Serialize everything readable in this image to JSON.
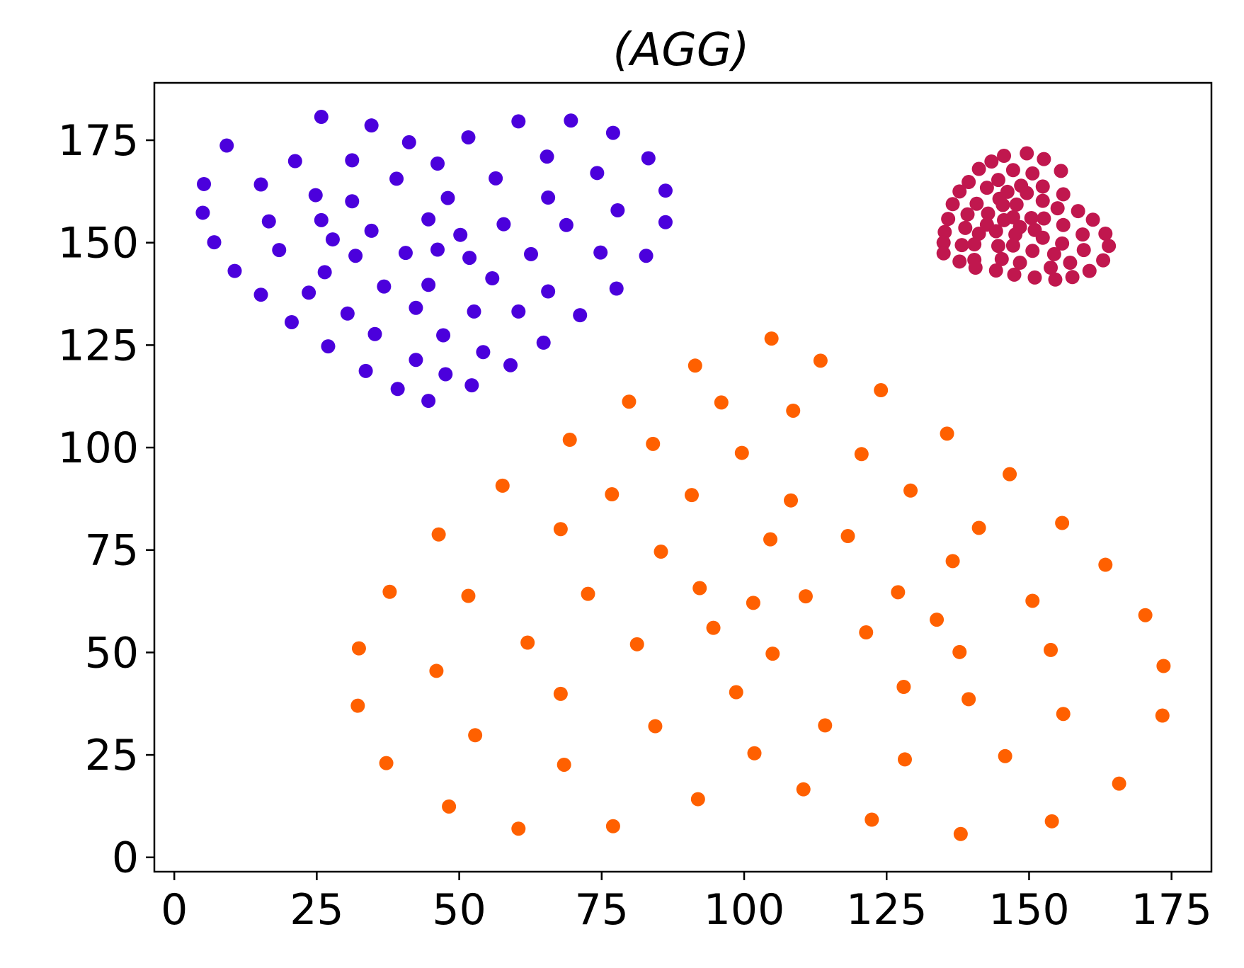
{
  "chart_data": {
    "type": "scatter",
    "title": "(AGG)",
    "xlabel": "",
    "ylabel": "",
    "xlim": [
      -3.5,
      182
    ],
    "ylim": [
      -3.5,
      189
    ],
    "xticks": [
      0,
      25,
      50,
      75,
      100,
      125,
      150,
      175
    ],
    "yticks": [
      0,
      25,
      50,
      75,
      100,
      125,
      150,
      175
    ],
    "grid": false,
    "legend": "none",
    "series": [
      {
        "color": "#4b00dc",
        "points": [
          [
            25.8,
            180.7
          ],
          [
            34.6,
            178.6
          ],
          [
            60.4,
            179.6
          ],
          [
            69.6,
            179.8
          ],
          [
            77,
            176.8
          ],
          [
            51.6,
            175.7
          ],
          [
            41.2,
            174.5
          ],
          [
            9.2,
            173.7
          ],
          [
            65.4,
            171
          ],
          [
            83.2,
            170.6
          ],
          [
            21.2,
            169.9
          ],
          [
            31.2,
            170.1
          ],
          [
            46.2,
            169.3
          ],
          [
            74.2,
            167
          ],
          [
            56.4,
            165.7
          ],
          [
            39,
            165.6
          ],
          [
            5.2,
            164.3
          ],
          [
            15.2,
            164.2
          ],
          [
            86.2,
            162.7
          ],
          [
            24.8,
            161.6
          ],
          [
            65.6,
            161
          ],
          [
            48,
            160.9
          ],
          [
            31.2,
            160.1
          ],
          [
            77.8,
            157.9
          ],
          [
            5,
            157.3
          ],
          [
            16.6,
            155.2
          ],
          [
            25.8,
            155.5
          ],
          [
            44.6,
            155.7
          ],
          [
            57.8,
            154.5
          ],
          [
            68.8,
            154.3
          ],
          [
            86.2,
            155
          ],
          [
            34.6,
            152.9
          ],
          [
            50.2,
            151.9
          ],
          [
            27.8,
            150.8
          ],
          [
            7,
            150.1
          ],
          [
            18.4,
            148.2
          ],
          [
            46.2,
            148.3
          ],
          [
            40.6,
            147.5
          ],
          [
            74.8,
            147.6
          ],
          [
            62.6,
            147.2
          ],
          [
            31.8,
            146.8
          ],
          [
            51.8,
            146.3
          ],
          [
            82.8,
            146.8
          ],
          [
            10.6,
            143.1
          ],
          [
            26.4,
            142.8
          ],
          [
            55.8,
            141.3
          ],
          [
            36.8,
            139.3
          ],
          [
            44.6,
            139.7
          ],
          [
            15.2,
            137.3
          ],
          [
            23.6,
            137.8
          ],
          [
            65.6,
            138.1
          ],
          [
            77.6,
            138.8
          ],
          [
            42.4,
            134.1
          ],
          [
            52.6,
            133.2
          ],
          [
            60.4,
            133.2
          ],
          [
            30.4,
            132.7
          ],
          [
            71.2,
            132.3
          ],
          [
            20.6,
            130.6
          ],
          [
            35.2,
            127.7
          ],
          [
            47.2,
            127.4
          ],
          [
            27,
            124.7
          ],
          [
            64.8,
            125.6
          ],
          [
            54.2,
            123.3
          ],
          [
            42.4,
            121.4
          ],
          [
            59,
            120.1
          ],
          [
            47.6,
            117.9
          ],
          [
            33.6,
            118.7
          ],
          [
            52.2,
            115.2
          ],
          [
            39.2,
            114.3
          ],
          [
            44.6,
            111.4
          ]
        ]
      },
      {
        "color": "#c0174e",
        "points": [
          [
            149.6,
            171.8
          ],
          [
            145.6,
            171.2
          ],
          [
            152.6,
            170.4
          ],
          [
            143.4,
            169.8
          ],
          [
            141.2,
            168
          ],
          [
            147.2,
            167.7
          ],
          [
            155.6,
            167.5
          ],
          [
            150.6,
            166.9
          ],
          [
            139.4,
            164.8
          ],
          [
            144.6,
            165.3
          ],
          [
            148.6,
            163.9
          ],
          [
            152.4,
            163.7
          ],
          [
            142.6,
            163.4
          ],
          [
            146.2,
            162.4
          ],
          [
            137.8,
            162.5
          ],
          [
            156,
            161.8
          ],
          [
            149.6,
            162.1
          ],
          [
            144.8,
            160.7
          ],
          [
            152.4,
            160.2
          ],
          [
            136.6,
            159.4
          ],
          [
            145.4,
            159.2
          ],
          [
            147.8,
            159.3
          ],
          [
            140.8,
            159.5
          ],
          [
            155,
            158.4
          ],
          [
            158.6,
            157.7
          ],
          [
            142.8,
            157.1
          ],
          [
            139.2,
            156.9
          ],
          [
            147.2,
            156.2
          ],
          [
            150.4,
            156
          ],
          [
            152.6,
            155.9
          ],
          [
            135.8,
            155.8
          ],
          [
            161.2,
            155.6
          ],
          [
            145.6,
            155.5
          ],
          [
            142.6,
            154.4
          ],
          [
            148.4,
            153.8
          ],
          [
            138.8,
            153.6
          ],
          [
            151,
            153.1
          ],
          [
            144.2,
            152.8
          ],
          [
            156,
            154.3
          ],
          [
            135.2,
            152.6
          ],
          [
            163.4,
            152.2
          ],
          [
            159.4,
            152
          ],
          [
            147.6,
            152
          ],
          [
            141.2,
            152.2
          ],
          [
            152.4,
            151.2
          ],
          [
            155.8,
            149.8
          ],
          [
            135,
            150
          ],
          [
            138.2,
            149.4
          ],
          [
            144.6,
            149.2
          ],
          [
            147.2,
            149.3
          ],
          [
            164,
            149.2
          ],
          [
            140.4,
            149.6
          ],
          [
            159.6,
            148.2
          ],
          [
            150.6,
            148
          ],
          [
            135,
            147.4
          ],
          [
            154.4,
            147.2
          ],
          [
            145.2,
            146
          ],
          [
            163,
            145.7
          ],
          [
            140.4,
            145.8
          ],
          [
            148.4,
            145.1
          ],
          [
            157.2,
            145.1
          ],
          [
            137.8,
            145.4
          ],
          [
            140.6,
            143.9
          ],
          [
            153.8,
            143.9
          ],
          [
            144.2,
            143.2
          ],
          [
            160.6,
            143.1
          ],
          [
            147.4,
            142.2
          ],
          [
            157.6,
            141.6
          ],
          [
            151,
            141.5
          ],
          [
            154.6,
            141
          ]
        ]
      },
      {
        "color": "#ff6000",
        "points": [
          [
            104.8,
            126.6
          ],
          [
            113.4,
            121.2
          ],
          [
            91.4,
            120
          ],
          [
            124,
            114
          ],
          [
            79.8,
            111.2
          ],
          [
            96,
            111
          ],
          [
            108.6,
            109
          ],
          [
            135.6,
            103.4
          ],
          [
            69.4,
            101.9
          ],
          [
            84,
            100.9
          ],
          [
            99.6,
            98.7
          ],
          [
            120.6,
            98.4
          ],
          [
            146.6,
            93.5
          ],
          [
            57.6,
            90.7
          ],
          [
            129.2,
            89.5
          ],
          [
            76.8,
            88.6
          ],
          [
            90.8,
            88.4
          ],
          [
            108.2,
            87.1
          ],
          [
            155.8,
            81.6
          ],
          [
            141.2,
            80.4
          ],
          [
            67.8,
            80.1
          ],
          [
            46.4,
            78.8
          ],
          [
            118.2,
            78.4
          ],
          [
            104.6,
            77.6
          ],
          [
            85.4,
            74.6
          ],
          [
            136.6,
            72.3
          ],
          [
            163.4,
            71.4
          ],
          [
            37.8,
            64.8
          ],
          [
            92.2,
            65.7
          ],
          [
            72.6,
            64.3
          ],
          [
            127,
            64.7
          ],
          [
            51.6,
            63.8
          ],
          [
            110.8,
            63.7
          ],
          [
            101.6,
            62.1
          ],
          [
            150.6,
            62.6
          ],
          [
            170.4,
            59.1
          ],
          [
            133.8,
            58
          ],
          [
            94.6,
            56
          ],
          [
            121.4,
            54.9
          ],
          [
            62,
            52.4
          ],
          [
            81.2,
            52
          ],
          [
            32.4,
            51
          ],
          [
            137.8,
            50.1
          ],
          [
            153.8,
            50.6
          ],
          [
            105,
            49.7
          ],
          [
            173.6,
            46.7
          ],
          [
            46,
            45.5
          ],
          [
            128,
            41.6
          ],
          [
            98.6,
            40.3
          ],
          [
            67.8,
            39.9
          ],
          [
            139.4,
            38.6
          ],
          [
            32.2,
            37
          ],
          [
            156,
            35
          ],
          [
            173.4,
            34.6
          ],
          [
            114.2,
            32.2
          ],
          [
            84.4,
            32
          ],
          [
            52.8,
            29.8
          ],
          [
            101.8,
            25.4
          ],
          [
            145.8,
            24.7
          ],
          [
            128.2,
            23.9
          ],
          [
            37.2,
            23
          ],
          [
            68.4,
            22.6
          ],
          [
            165.8,
            18
          ],
          [
            110.4,
            16.6
          ],
          [
            91.9,
            14.2
          ],
          [
            48.2,
            12.4
          ],
          [
            122.4,
            9.2
          ],
          [
            154,
            8.8
          ],
          [
            77,
            7.6
          ],
          [
            60.4,
            7
          ],
          [
            138,
            5.7
          ]
        ]
      }
    ]
  }
}
